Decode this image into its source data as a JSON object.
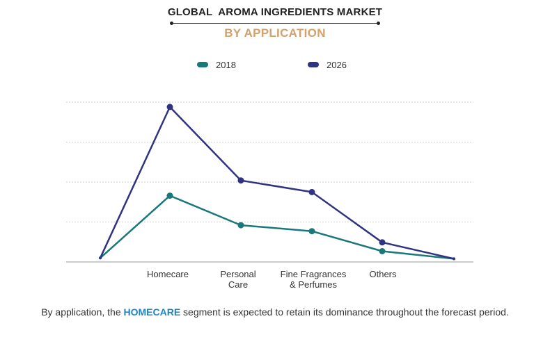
{
  "title": "GLOBAL  AROMA INGREDIENTS MARKET",
  "subtitle": "BY APPLICATION",
  "footer": {
    "prefix": "By application, the ",
    "highlight": "HOMECARE",
    "suffix": " segment is expected to retain its dominance throughout the forecast period."
  },
  "colors": {
    "series_2018": "#19787a",
    "series_2026": "#2f3382",
    "subtitle": "#d4a06b",
    "highlight": "#1a86c4",
    "grid": "#cccccc",
    "axis": "#999999"
  },
  "chart_data": {
    "type": "line",
    "title": "GLOBAL  AROMA INGREDIENTS MARKET",
    "subtitle": "BY APPLICATION",
    "categories": [
      "",
      "Homecare",
      "Personal\nCare",
      "Fine Fragrances\n& Perfumes",
      "Others",
      ""
    ],
    "series": [
      {
        "name": "2018",
        "color": "#19787a",
        "values": [
          0.1,
          1.66,
          0.92,
          0.77,
          0.27,
          0.08
        ]
      },
      {
        "name": "2026",
        "color": "#2f3382",
        "values": [
          0.1,
          3.88,
          2.04,
          1.75,
          0.49,
          0.08
        ]
      }
    ],
    "marker_indices": [
      1,
      2,
      3,
      4
    ],
    "ylim": [
      0,
      4
    ],
    "grid": true,
    "legend_position": "top-center",
    "xlabel": "",
    "ylabel": ""
  }
}
